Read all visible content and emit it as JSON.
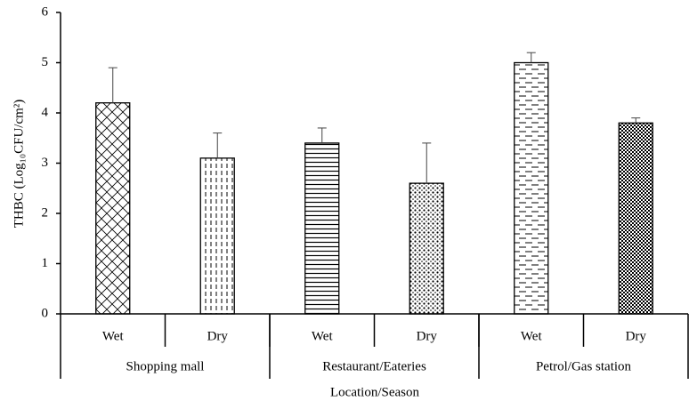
{
  "chart_data": {
    "type": "bar",
    "y_label": "THBC (Log₁₀CFU/cm²)",
    "x_label": "Location/Season",
    "categories": [
      "Wet",
      "Dry",
      "Wet",
      "Dry",
      "Wet",
      "Dry"
    ],
    "groups": [
      "Shopping mall",
      "Restaurant/Eateries",
      "Petrol/Gas station"
    ],
    "values": [
      4.2,
      3.1,
      3.4,
      2.6,
      5.0,
      3.8
    ],
    "errors": [
      0.7,
      0.5,
      0.3,
      0.8,
      0.2,
      0.1
    ],
    "patterns": [
      "crosshatch",
      "dashed-vertical",
      "horizontal",
      "dots",
      "dashed-horizontal",
      "checker"
    ],
    "color": "#000000",
    "ylim": [
      0,
      6
    ],
    "yticks": [
      0,
      1,
      2,
      3,
      4,
      5,
      6
    ]
  }
}
